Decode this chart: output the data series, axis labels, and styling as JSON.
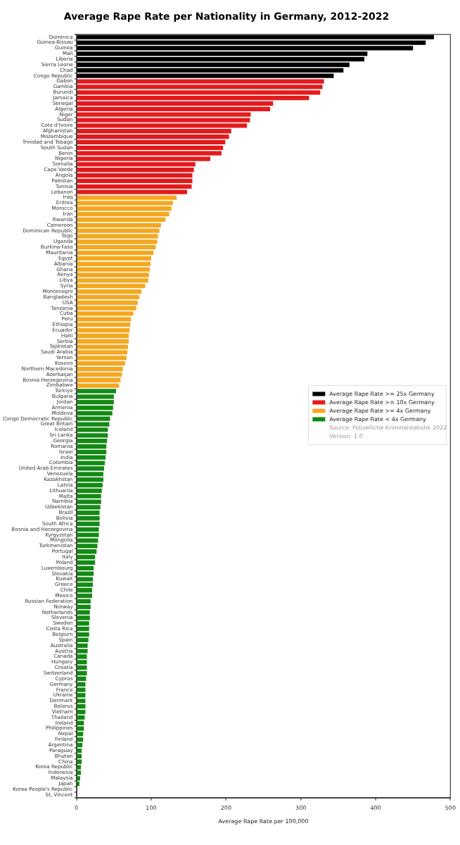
{
  "chart_data": {
    "type": "bar",
    "orientation": "horizontal",
    "stacked": true,
    "title": "Average Rape Rate per Nationality in Germany, 2012-2022",
    "xlabel": "Average Rape Rate per 100,000",
    "categories": [
      "Dominica",
      "Guinea-Bissau",
      "Guinea",
      "Mali",
      "Liberia",
      "Sierra Leone",
      "Chad",
      "Congo Republic",
      "Gabon",
      "Gambia",
      "Burundi",
      "Jamaica",
      "Senegal",
      "Algeria",
      "Niger",
      "Sudan",
      "Cote d'Ivoire",
      "Afghanistan",
      "Mozambique",
      "Trinidad and Tobago",
      "South Sudan",
      "Benin",
      "Nigeria",
      "Somalia",
      "Cape Verde",
      "Angola",
      "Pakistan",
      "Tunisia",
      "Lebanon",
      "Iraq",
      "Eritrea",
      "Morocco",
      "Iran",
      "Rwanda",
      "Cameroon",
      "Dominican Republic",
      "Togo",
      "Uganda",
      "Burkina Faso",
      "Mauritania",
      "Egypt",
      "Albania",
      "Ghana",
      "Kenya",
      "Libya",
      "Syria",
      "Montenegro",
      "Bangladesh",
      "USA",
      "Tanzania",
      "Cuba",
      "Peru",
      "Ethiopia",
      "Ecuador",
      "Haiti",
      "Serbia",
      "Tajikistan",
      "Saudi Arabia",
      "Yemen",
      "Kosovo",
      "Northern Macedonia",
      "Azerbaijan",
      "Bosnia Herzegovina",
      "Zimbabwe",
      "Türkiye",
      "Bulgaria",
      "Jordan",
      "Armenia",
      "Moldova",
      "Congo Democratic Republic",
      "Great Britain",
      "Iceland",
      "Sri Lanka",
      "Georgia",
      "Romania",
      "Israel",
      "India",
      "Colombia",
      "United Arab Emirates",
      "Venezuela",
      "Kazakhstan",
      "Latvia",
      "Lithuania",
      "Malta",
      "Namibia",
      "Uzbekistan",
      "Brazil",
      "Bolivia",
      "South Africa",
      "Bosnia and Herzegovina",
      "Kyrgyzstan",
      "Mongolia",
      "Turkmenistan",
      "Portugal",
      "Italy",
      "Poland",
      "Luxembourg",
      "Slovakia",
      "Kuwait",
      "Greece",
      "Chile",
      "Mexico",
      "Russian Federation",
      "Norway",
      "Netherlands",
      "Slovenia",
      "Sweden",
      "Costa Rica",
      "Belgium",
      "Spain",
      "Australia",
      "Austria",
      "Canada",
      "Hungary",
      "Croatia",
      "Switzerland",
      "Cyprus",
      "Germany",
      "France",
      "Ukraine",
      "Denmark",
      "Belarus",
      "Vietnam",
      "Thailand",
      "Ireland",
      "Philippines",
      "Nepal",
      "Finland",
      "Argentina",
      "Paraguay",
      "Bhutan",
      "China",
      "Korea Republic",
      "Indonesia",
      "Malaysia",
      "Japan",
      "Korea People's Republic",
      "St. Vincent"
    ],
    "series": [
      {
        "name": "Average Rape Rate >= 25x Germany",
        "color": "#000000",
        "values": [
          478,
          467,
          450,
          389,
          385,
          365,
          357,
          344,
          null,
          null,
          null,
          null,
          null,
          null,
          null,
          null,
          null,
          null,
          null,
          null,
          null,
          null,
          null,
          null,
          null,
          null,
          null,
          null,
          null,
          null,
          null,
          null,
          null,
          null,
          null,
          null,
          null,
          null,
          null,
          null,
          null,
          null,
          null,
          null,
          null,
          null,
          null,
          null,
          null,
          null,
          null,
          null,
          null,
          null,
          null,
          null,
          null,
          null,
          null,
          null,
          null,
          null,
          null,
          null,
          null,
          null,
          null,
          null,
          null,
          null,
          null,
          null,
          null,
          null,
          null,
          null,
          null,
          null,
          null,
          null,
          null,
          null,
          null,
          null,
          null,
          null,
          null,
          null,
          null,
          null,
          null,
          null,
          null,
          null,
          null,
          null,
          null,
          null,
          null,
          null,
          null,
          null,
          null,
          null,
          null,
          null,
          null,
          null,
          null,
          null,
          null,
          null,
          null,
          null,
          null,
          null,
          null,
          null,
          null,
          null,
          null,
          null,
          null,
          null,
          null,
          null,
          null,
          null,
          null,
          null,
          null,
          null,
          null,
          null,
          null,
          null,
          null,
          null
        ]
      },
      {
        "name": "Average Rape Rate >= 10x Germany",
        "color": "#e31a1c",
        "values": [
          null,
          null,
          null,
          null,
          null,
          null,
          null,
          null,
          331,
          329,
          326,
          311,
          263,
          259,
          233,
          232,
          228,
          207,
          204,
          199,
          196,
          194,
          179,
          159,
          157,
          155,
          155,
          154,
          148,
          null,
          null,
          null,
          null,
          null,
          null,
          null,
          null,
          null,
          null,
          null,
          null,
          null,
          null,
          null,
          null,
          null,
          null,
          null,
          null,
          null,
          null,
          null,
          null,
          null,
          null,
          null,
          null,
          null,
          null,
          null,
          null,
          null,
          null,
          null,
          null,
          null,
          null,
          null,
          null,
          null,
          null,
          null,
          null,
          null,
          null,
          null,
          null,
          null,
          null,
          null,
          null,
          null,
          null,
          null,
          null,
          null,
          null,
          null,
          null,
          null,
          null,
          null,
          null,
          null,
          null,
          null,
          null,
          null,
          null,
          null,
          null,
          null,
          null,
          null,
          null,
          null,
          null,
          null,
          null,
          null,
          null,
          null,
          null,
          null,
          null,
          null,
          null,
          null,
          null,
          null,
          null,
          null,
          null,
          null,
          null,
          null,
          null,
          null,
          null,
          null,
          null,
          null,
          null,
          null,
          null,
          null,
          null,
          null
        ]
      },
      {
        "name": "Average Rape Rate >= 4x Germany",
        "color": "#f4a820",
        "values": [
          null,
          null,
          null,
          null,
          null,
          null,
          null,
          null,
          null,
          null,
          null,
          null,
          null,
          null,
          null,
          null,
          null,
          null,
          null,
          null,
          null,
          null,
          null,
          null,
          null,
          null,
          null,
          null,
          null,
          134,
          129,
          127,
          124,
          119,
          113,
          111,
          109,
          108,
          106,
          103,
          100,
          99,
          98,
          97,
          96,
          92,
          87,
          84,
          82,
          80,
          76,
          73,
          72,
          71,
          70,
          70,
          69,
          68,
          67,
          65,
          62,
          61,
          59,
          57,
          null,
          null,
          null,
          null,
          null,
          null,
          null,
          null,
          null,
          null,
          null,
          null,
          null,
          null,
          null,
          null,
          null,
          null,
          null,
          null,
          null,
          null,
          null,
          null,
          null,
          null,
          null,
          null,
          null,
          null,
          null,
          null,
          null,
          null,
          null,
          null,
          null,
          null,
          null,
          null,
          null,
          null,
          null,
          null,
          null,
          null,
          null,
          null,
          null,
          null,
          null,
          null,
          null,
          null,
          null,
          null,
          null,
          null,
          null,
          null,
          null,
          null,
          null,
          null,
          null,
          null,
          null,
          null,
          null,
          null,
          null,
          null,
          null,
          null
        ]
      },
      {
        "name": "Average Rape Rate < 4x Germany",
        "color": "#148a14",
        "values": [
          null,
          null,
          null,
          null,
          null,
          null,
          null,
          null,
          null,
          null,
          null,
          null,
          null,
          null,
          null,
          null,
          null,
          null,
          null,
          null,
          null,
          null,
          null,
          null,
          null,
          null,
          null,
          null,
          null,
          null,
          null,
          null,
          null,
          null,
          null,
          null,
          null,
          null,
          null,
          null,
          null,
          null,
          null,
          null,
          null,
          null,
          null,
          null,
          null,
          null,
          null,
          null,
          null,
          null,
          null,
          null,
          null,
          null,
          null,
          null,
          null,
          null,
          null,
          null,
          53,
          50,
          50,
          49,
          48,
          45,
          44,
          42,
          42,
          41,
          40,
          40,
          39,
          38,
          37,
          36,
          36,
          35,
          34,
          33,
          33,
          32,
          31,
          31,
          31,
          30,
          30,
          29,
          28,
          27,
          25,
          25,
          23,
          23,
          22,
          22,
          21,
          21,
          19,
          19,
          18,
          18,
          17,
          17,
          17,
          16,
          15,
          15,
          14,
          14,
          14,
          14,
          13,
          12,
          12,
          12,
          12,
          12,
          12,
          11,
          10,
          10,
          9,
          9,
          8,
          7,
          7,
          7,
          6,
          6,
          5,
          4,
          1,
          1
        ]
      }
    ],
    "xlim": [
      0,
      500
    ],
    "xticks": [
      0,
      100,
      200,
      300,
      400,
      500
    ],
    "legend": "right",
    "annotations": [
      "Source: Polizeiliche Kriminalstatistik 2022",
      "Version: 1.0"
    ]
  }
}
